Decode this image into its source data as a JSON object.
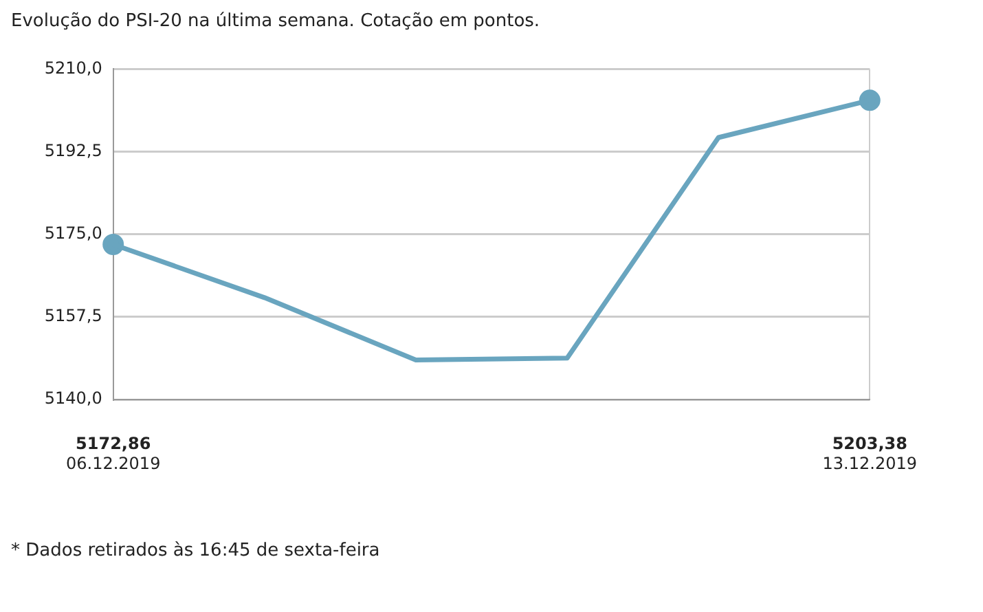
{
  "chart_data": {
    "type": "line",
    "title": "Evolução do PSI-20 na última semana. Cotação em pontos.",
    "categories": [
      "06.12.2019",
      null,
      null,
      null,
      null,
      "13.12.2019"
    ],
    "series": [
      {
        "color": "#69a5bf",
        "marker": "none",
        "values": [
          5172.86,
          5161.6,
          5148.4,
          5148.8,
          5195.5,
          5203.38
        ]
      },
      {
        "type": "scatter",
        "color": "#69a5bf",
        "values": [
          5172.86,
          null,
          null,
          null,
          null,
          5203.38
        ],
        "value_labels": [
          "5172,86",
          null,
          null,
          null,
          null,
          "5203,38"
        ]
      }
    ],
    "ylim": [
      5140,
      5210
    ],
    "yticks": [
      {
        "value": 5140,
        "label": "5140,0"
      },
      {
        "value": 5157.5,
        "label": "5157,5"
      },
      {
        "value": 5175,
        "label": "5175,0"
      },
      {
        "value": 5192.5,
        "label": "5192,5"
      },
      {
        "value": 5210,
        "label": "5210,0"
      }
    ],
    "grid": "y",
    "legend": false,
    "marker": "circle",
    "line_style": "solid",
    "annotations": [
      "* Dados retirados às 16:45 de sexta-feira"
    ]
  }
}
